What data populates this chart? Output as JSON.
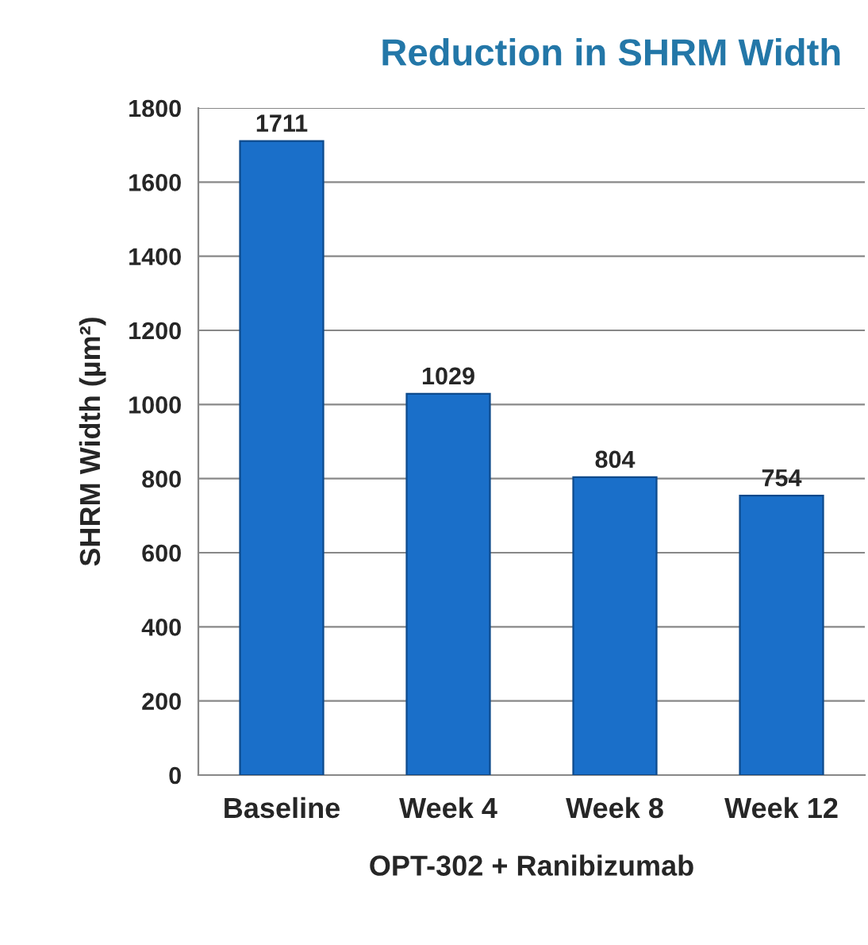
{
  "chart_data": {
    "type": "bar",
    "title": "Reduction in SHRM Width",
    "xlabel": "OPT-302 + Ranibizumab",
    "ylabel": "SHRM Width (µm²)",
    "categories": [
      "Baseline",
      "Week 4",
      "Week 8",
      "Week 12"
    ],
    "values": [
      1711,
      1029,
      804,
      754
    ],
    "color": "#1a6fc9",
    "ylim": [
      0,
      1800
    ],
    "yticks": [
      0,
      200,
      400,
      600,
      800,
      1000,
      1200,
      1400,
      1600,
      1800
    ],
    "grid": "y",
    "data_labels": true
  }
}
